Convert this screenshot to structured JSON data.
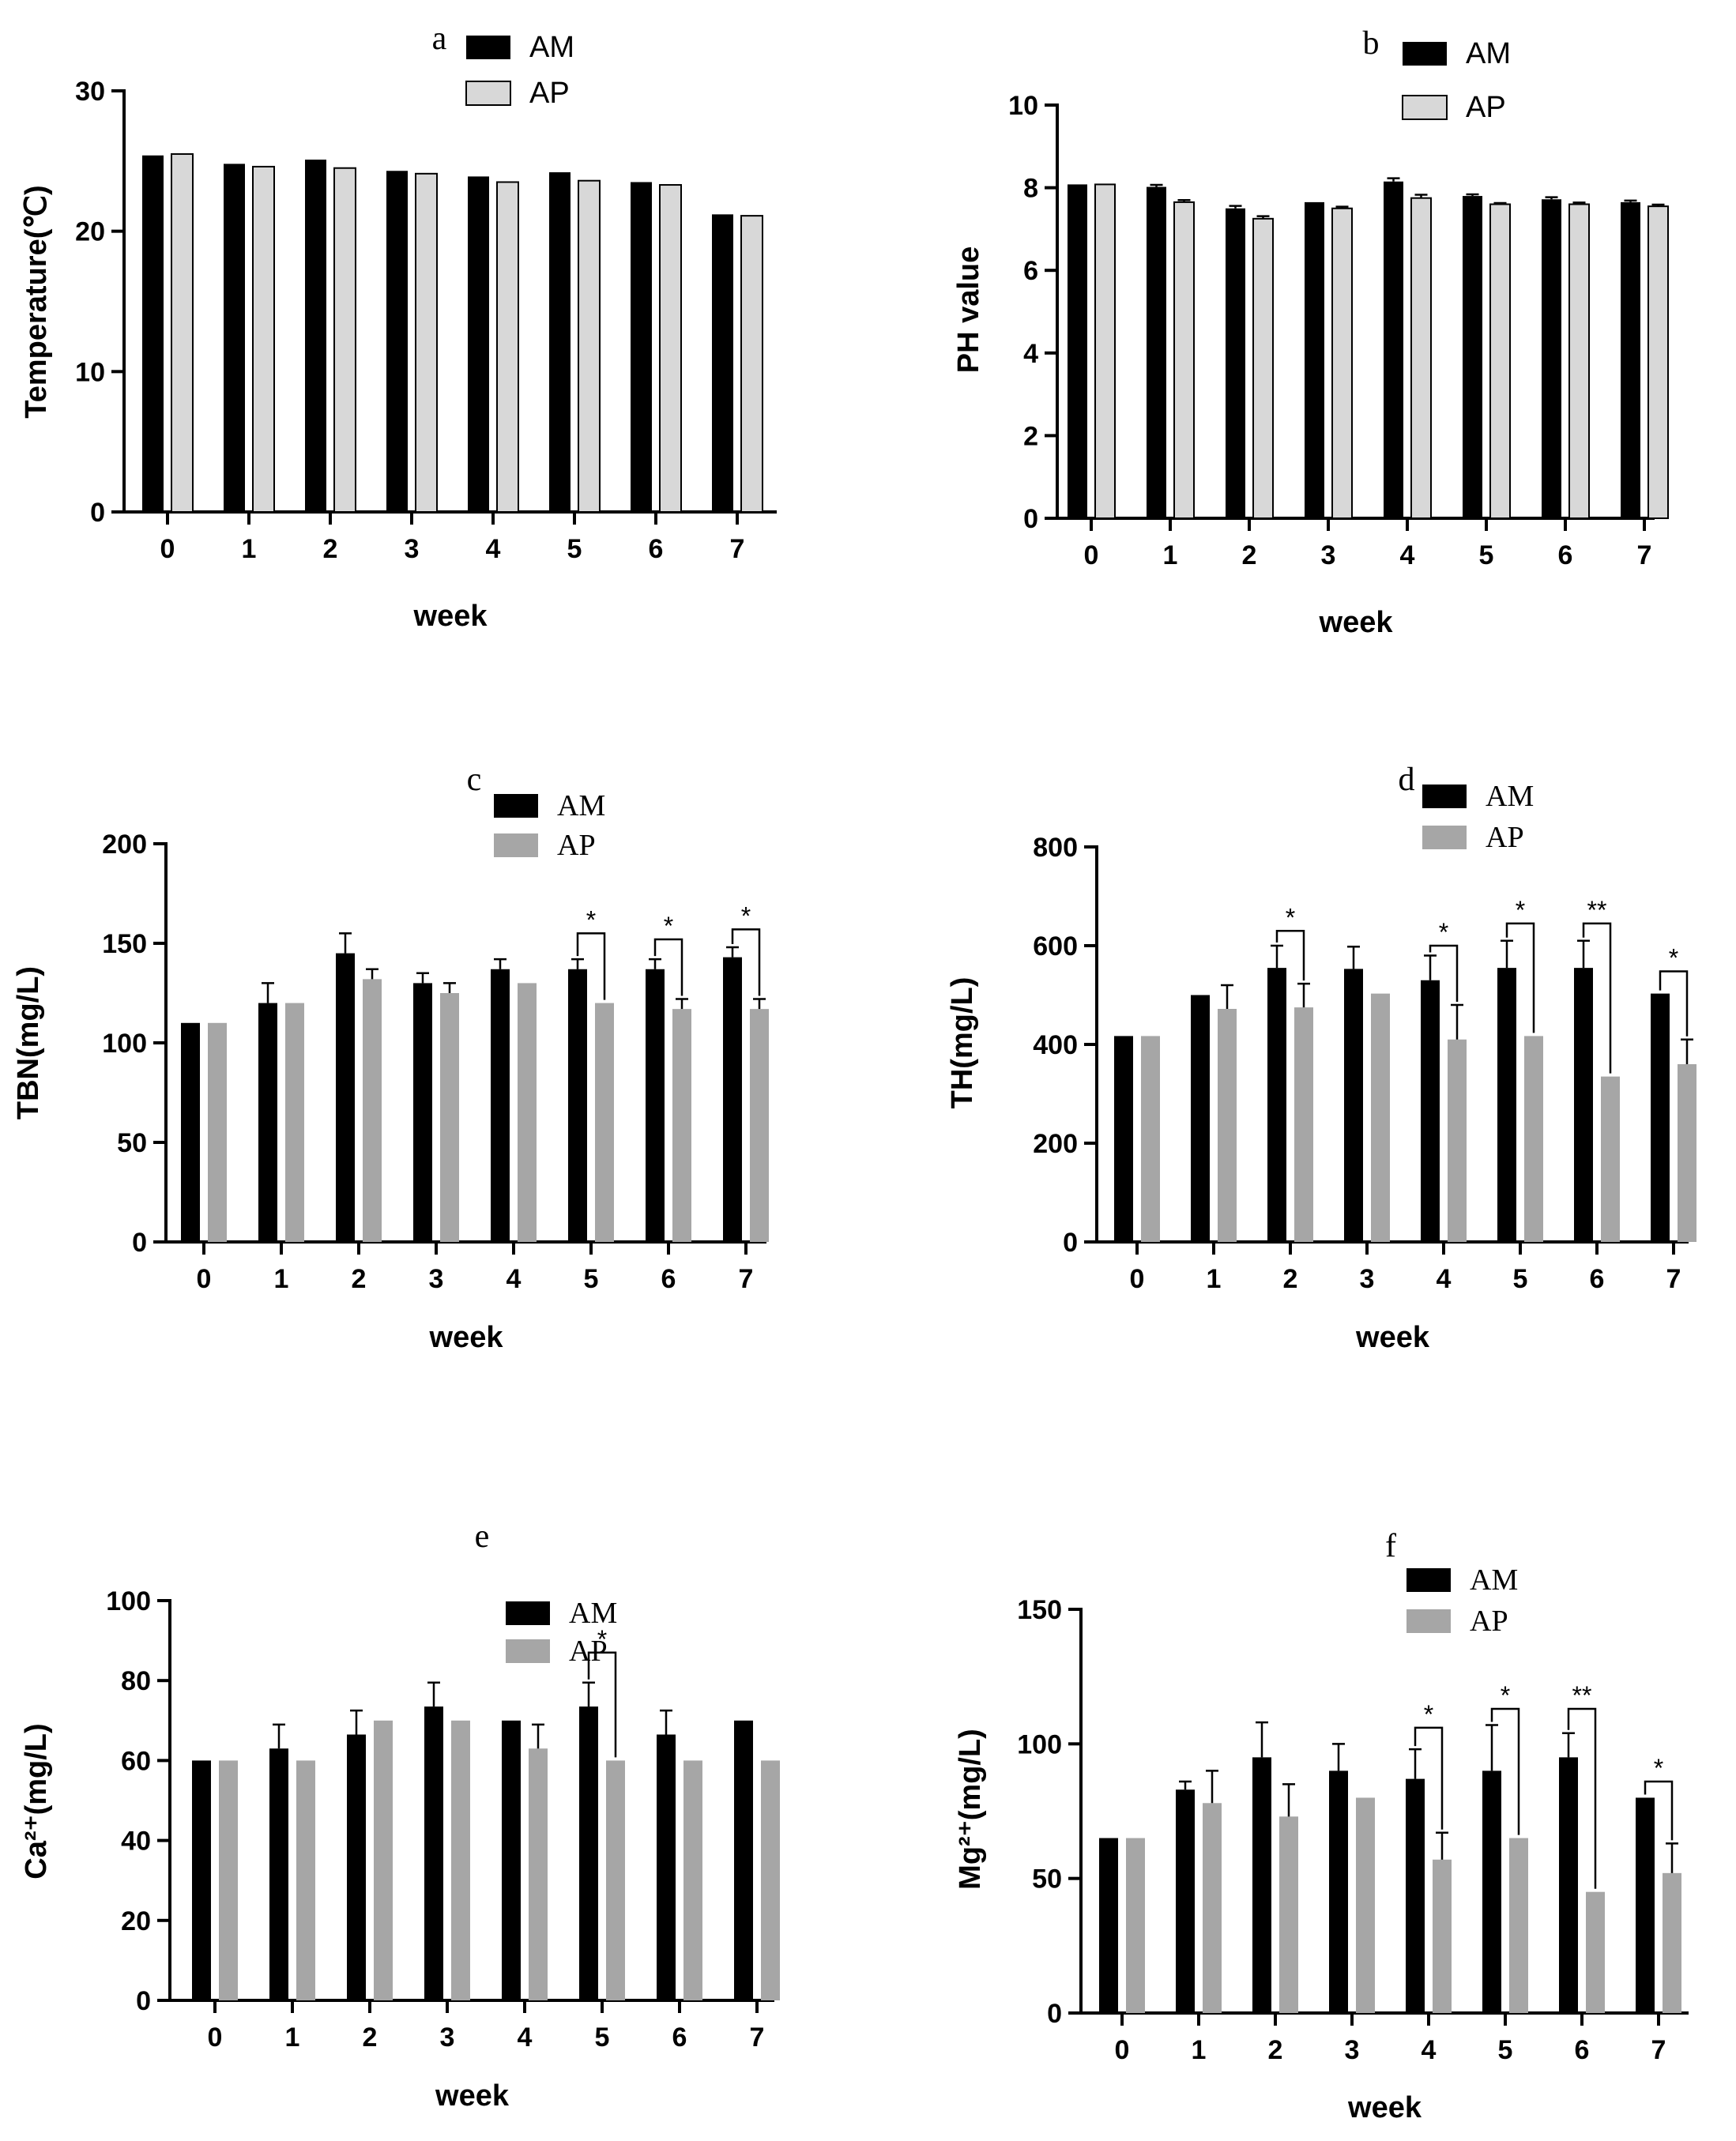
{
  "colors": {
    "am": "#000000",
    "ap_light": "#d8d8d8",
    "ap_gray": "#a6a6a6"
  },
  "chart_data": [
    {
      "panel": "a",
      "type": "bar",
      "title": "a",
      "xlabel": "week",
      "ylabel": "Temperature(℃)",
      "categories": [
        "0",
        "1",
        "2",
        "3",
        "4",
        "5",
        "6",
        "7"
      ],
      "ylim": [
        0,
        30
      ],
      "yticks": [
        0,
        10,
        20,
        30
      ],
      "legend_position": "top-right",
      "legend_style": "sans",
      "series": [
        {
          "name": "AM",
          "values": [
            25.4,
            24.8,
            25.1,
            24.3,
            23.9,
            24.2,
            23.5,
            21.2
          ],
          "errors": [
            0,
            0,
            0,
            0,
            0,
            0,
            0,
            0
          ]
        },
        {
          "name": "AP",
          "values": [
            25.5,
            24.6,
            24.5,
            24.1,
            23.5,
            23.6,
            23.3,
            21.1
          ],
          "errors": [
            0,
            0,
            0,
            0,
            0,
            0,
            0,
            0
          ]
        }
      ],
      "significance": []
    },
    {
      "panel": "b",
      "type": "bar",
      "title": "b",
      "xlabel": "week",
      "ylabel": "PH value",
      "categories": [
        "0",
        "1",
        "2",
        "3",
        "4",
        "5",
        "6",
        "7"
      ],
      "ylim": [
        0,
        10
      ],
      "yticks": [
        0,
        2,
        4,
        6,
        8,
        10
      ],
      "legend_position": "top-right",
      "legend_style": "sans",
      "series": [
        {
          "name": "AM",
          "values": [
            8.08,
            8.02,
            7.5,
            7.65,
            8.15,
            7.8,
            7.72,
            7.65
          ],
          "errors": [
            0,
            0.05,
            0.06,
            0,
            0.08,
            0.04,
            0.05,
            0.04
          ]
        },
        {
          "name": "AP",
          "values": [
            8.08,
            7.65,
            7.25,
            7.5,
            7.75,
            7.6,
            7.6,
            7.55
          ],
          "errors": [
            0,
            0.05,
            0.06,
            0.04,
            0.08,
            0.03,
            0.04,
            0.04
          ]
        }
      ],
      "significance": []
    },
    {
      "panel": "c",
      "type": "bar",
      "title": "c",
      "xlabel": "week",
      "ylabel": "TBN(mg/L)",
      "categories": [
        "0",
        "1",
        "2",
        "3",
        "4",
        "5",
        "6",
        "7"
      ],
      "ylim": [
        0,
        200
      ],
      "yticks": [
        0,
        50,
        100,
        150,
        200
      ],
      "legend_position": "top-right",
      "legend_style": "serif",
      "series": [
        {
          "name": "AM",
          "values": [
            110,
            120,
            145,
            130,
            137,
            137,
            137,
            143
          ],
          "errors": [
            0,
            10,
            10,
            5,
            5,
            5,
            5,
            5
          ]
        },
        {
          "name": "AP",
          "values": [
            110,
            120,
            132,
            125,
            130,
            120,
            117,
            117
          ],
          "errors": [
            0,
            0,
            5,
            5,
            0,
            0,
            5,
            5
          ]
        }
      ],
      "significance": [
        {
          "category": 5,
          "label": "*",
          "y_top": 155
        },
        {
          "category": 6,
          "label": "*",
          "y_top": 152
        },
        {
          "category": 7,
          "label": "*",
          "y_top": 157
        }
      ]
    },
    {
      "panel": "d",
      "type": "bar",
      "title": "d",
      "xlabel": "week",
      "ylabel": "TH(mg/L)",
      "categories": [
        "0",
        "1",
        "2",
        "3",
        "4",
        "5",
        "6",
        "7"
      ],
      "ylim": [
        0,
        800
      ],
      "yticks": [
        0,
        200,
        400,
        600,
        800
      ],
      "legend_position": "top-right",
      "legend_style": "serif",
      "series": [
        {
          "name": "AM",
          "values": [
            417,
            500,
            555,
            553,
            530,
            555,
            555,
            503
          ],
          "errors": [
            0,
            0,
            45,
            45,
            50,
            55,
            55,
            0
          ]
        },
        {
          "name": "AP",
          "values": [
            417,
            472,
            475,
            503,
            410,
            417,
            335,
            360
          ],
          "errors": [
            0,
            48,
            48,
            0,
            70,
            0,
            0,
            50
          ]
        }
      ],
      "significance": [
        {
          "category": 2,
          "label": "*",
          "y_top": 630
        },
        {
          "category": 4,
          "label": "*",
          "y_top": 600
        },
        {
          "category": 5,
          "label": "*",
          "y_top": 645
        },
        {
          "category": 6,
          "label": "**",
          "y_top": 645
        },
        {
          "category": 7,
          "label": "*",
          "y_top": 548
        }
      ]
    },
    {
      "panel": "e",
      "type": "bar",
      "title": "e",
      "xlabel": "week",
      "ylabel": "Ca²⁺(mg/L)",
      "categories": [
        "0",
        "1",
        "2",
        "3",
        "4",
        "5",
        "6",
        "7"
      ],
      "ylim": [
        0,
        100
      ],
      "yticks": [
        0,
        20,
        40,
        60,
        80,
        100
      ],
      "legend_position": "top-right",
      "legend_style": "serif",
      "series": [
        {
          "name": "AM",
          "values": [
            60,
            63,
            66.5,
            73.5,
            70,
            73.5,
            66.5,
            70
          ],
          "errors": [
            0,
            6,
            6,
            6,
            0,
            6,
            6,
            0
          ]
        },
        {
          "name": "AP",
          "values": [
            60,
            60,
            70,
            70,
            63,
            60,
            60,
            60
          ],
          "errors": [
            0,
            0,
            0,
            0,
            6,
            0,
            0,
            0
          ]
        }
      ],
      "significance": [
        {
          "category": 5,
          "label": "*",
          "y_top": 87
        }
      ]
    },
    {
      "panel": "f",
      "type": "bar",
      "title": "f",
      "xlabel": "week",
      "ylabel": "Mg²⁺(mg/L)",
      "categories": [
        "0",
        "1",
        "2",
        "3",
        "4",
        "5",
        "6",
        "7"
      ],
      "ylim": [
        0,
        150
      ],
      "yticks": [
        0,
        50,
        100,
        150
      ],
      "legend_position": "top-right",
      "legend_style": "serif",
      "series": [
        {
          "name": "AM",
          "values": [
            65,
            83,
            95,
            90,
            87,
            90,
            95,
            80
          ],
          "errors": [
            0,
            3,
            13,
            10,
            11,
            17,
            9,
            0
          ]
        },
        {
          "name": "AP",
          "values": [
            65,
            78,
            73,
            80,
            57,
            65,
            45,
            52
          ],
          "errors": [
            0,
            12,
            12,
            0,
            10,
            0,
            0,
            11
          ]
        }
      ],
      "significance": [
        {
          "category": 4,
          "label": "*",
          "y_top": 106
        },
        {
          "category": 5,
          "label": "*",
          "y_top": 113
        },
        {
          "category": 6,
          "label": "**",
          "y_top": 113
        },
        {
          "category": 7,
          "label": "*",
          "y_top": 86
        }
      ]
    }
  ]
}
